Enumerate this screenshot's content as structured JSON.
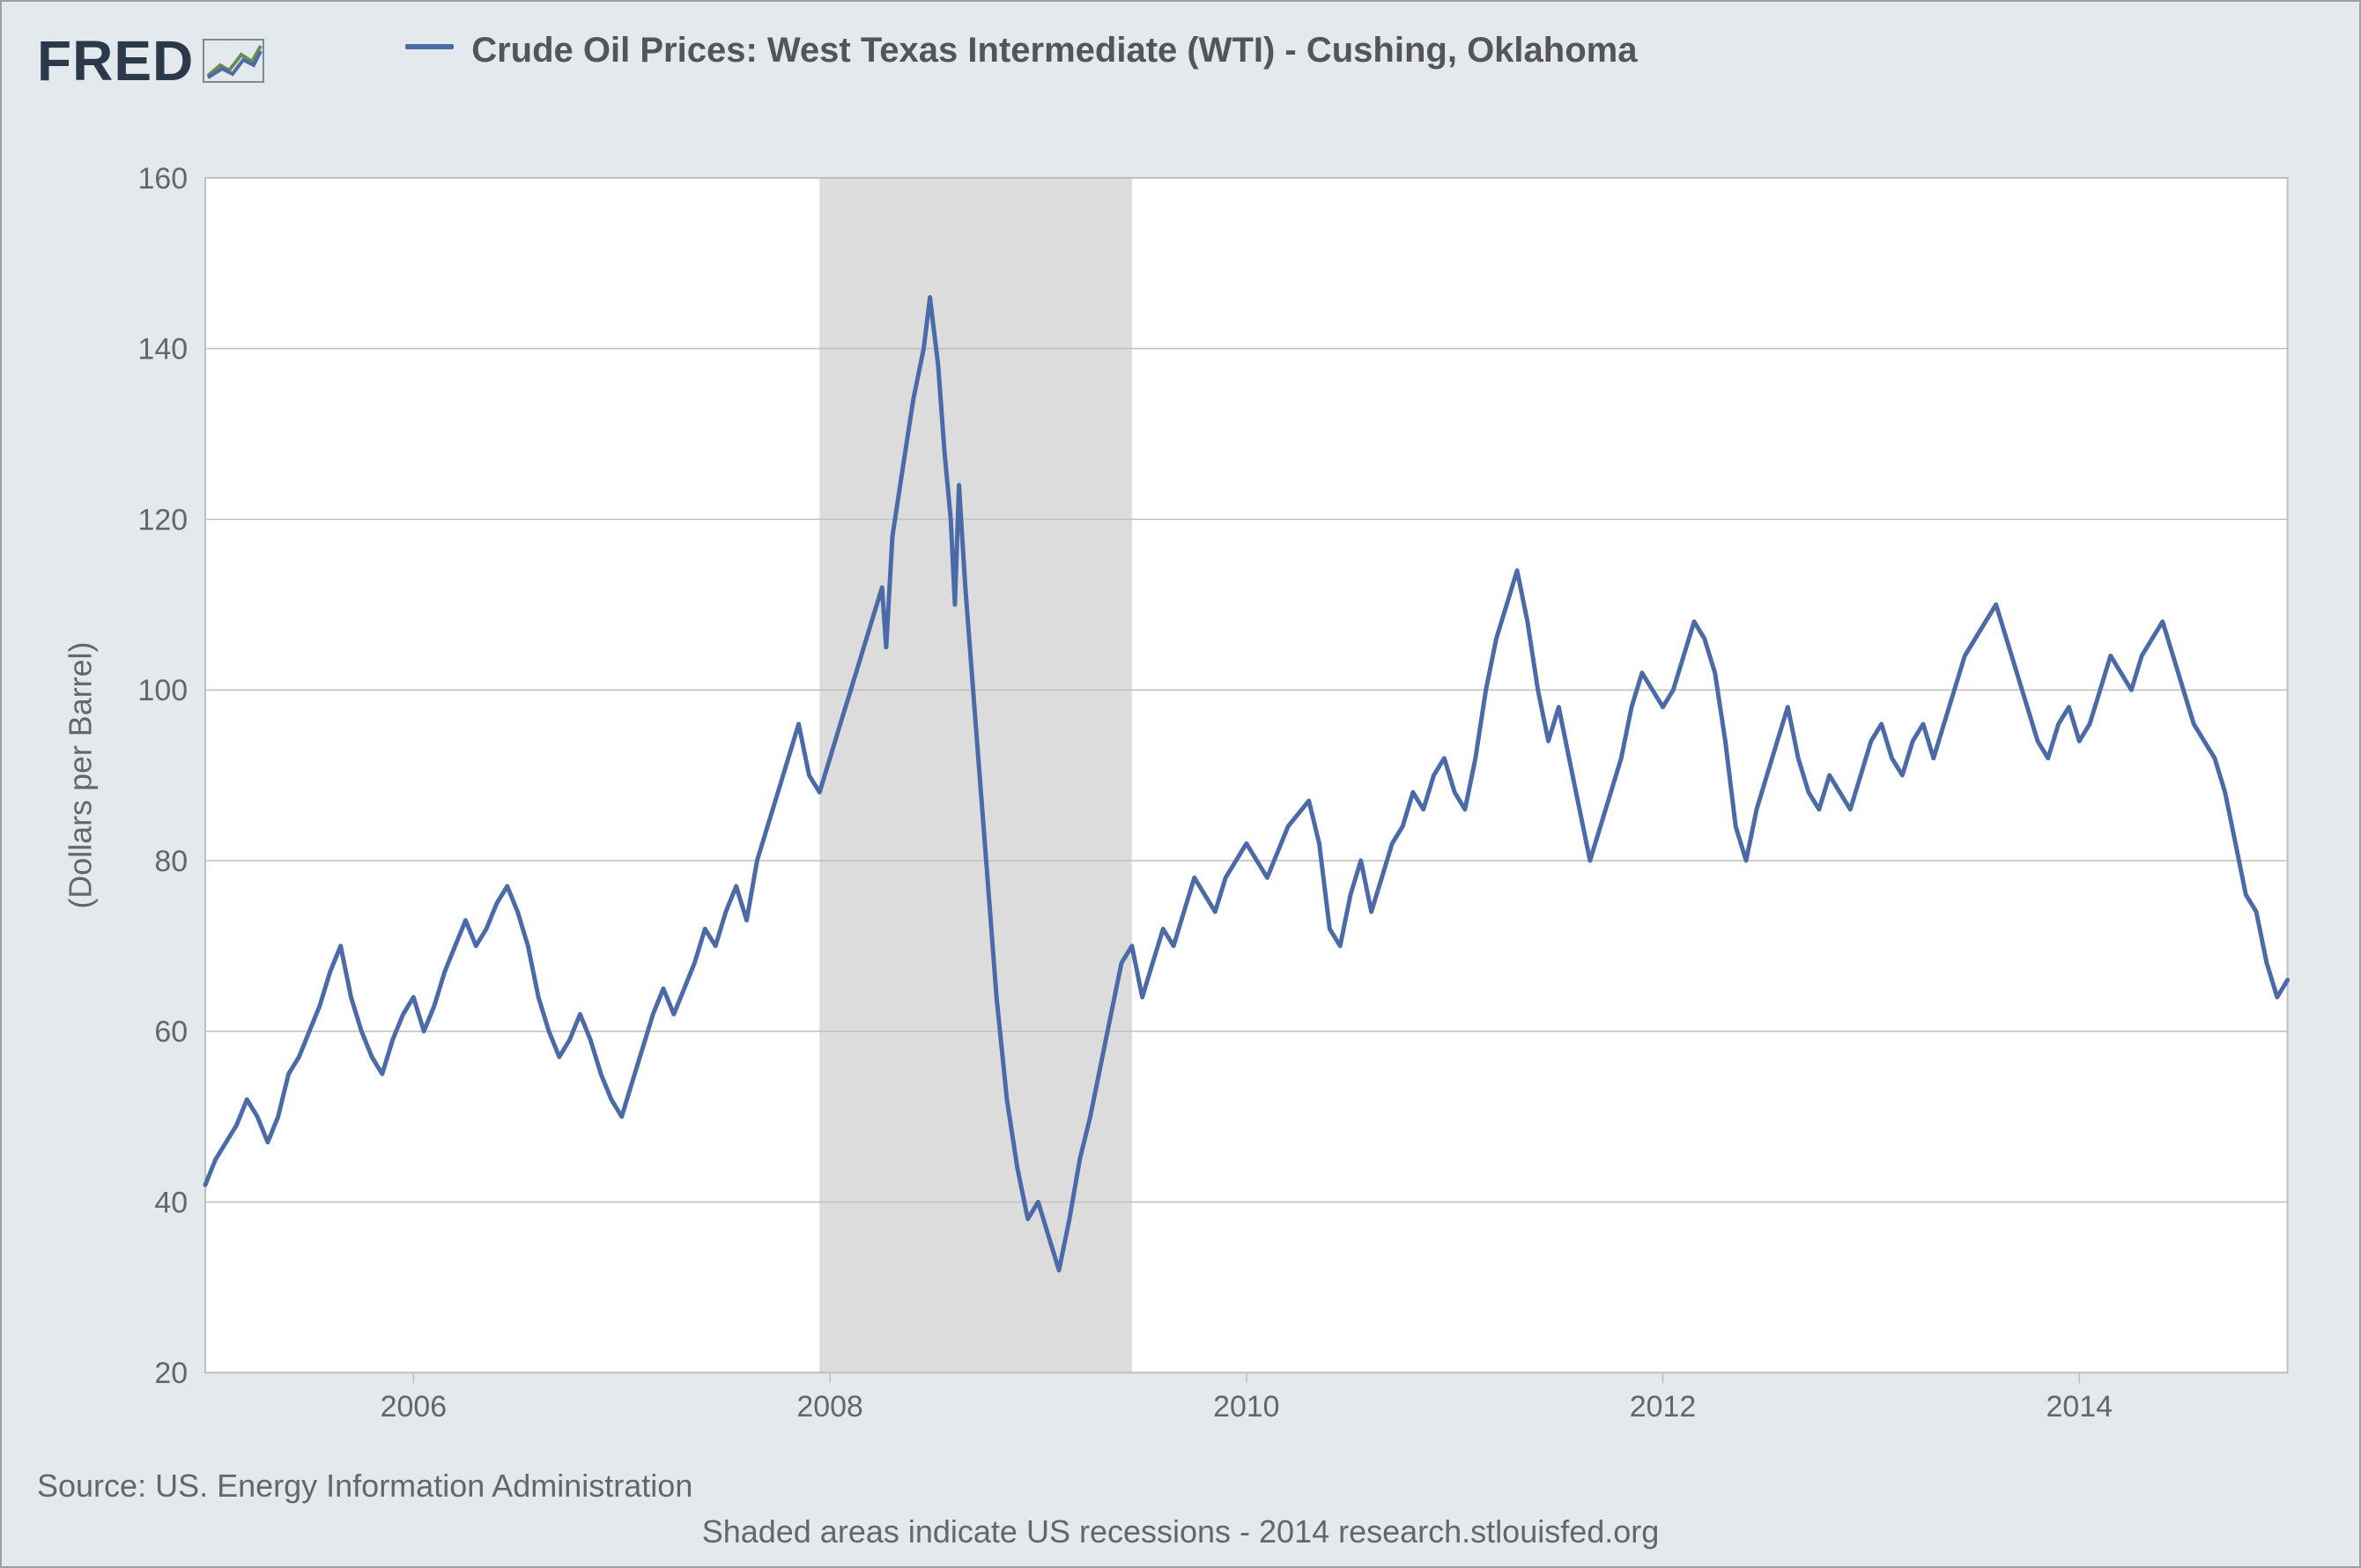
{
  "logo": {
    "text": "FRED"
  },
  "legend": {
    "series_color": "#4a6ba8",
    "label": "Crude Oil Prices: West Texas Intermediate (WTI) - Cushing, Oklahoma"
  },
  "footer": {
    "source": "Source: US. Energy Information Administration",
    "note": "Shaded areas indicate US recessions - 2014 research.stlouisfed.org"
  },
  "chart": {
    "type": "line",
    "background_color": "#ffffff",
    "page_background": "#e3e9ed",
    "grid_color": "#bfbfbf",
    "border_color": "#9aa0a6",
    "series_color": "#4a6ba8",
    "line_width": 5,
    "ylabel": "(Dollars per Barrel)",
    "ylabel_fontsize": 36,
    "axis_label_fontsize": 34,
    "axis_label_color": "#666666",
    "xlim": [
      2005.0,
      2015.0
    ],
    "ylim": [
      20,
      160
    ],
    "ytick_step": 20,
    "yticks": [
      20,
      40,
      60,
      80,
      100,
      120,
      140,
      160
    ],
    "xticks": [
      2006,
      2008,
      2010,
      2012,
      2014
    ],
    "recession_band": {
      "start": 2007.95,
      "end": 2009.45,
      "fill": "#dcdcdc"
    },
    "data": [
      [
        2005.0,
        42
      ],
      [
        2005.05,
        45
      ],
      [
        2005.1,
        47
      ],
      [
        2005.15,
        49
      ],
      [
        2005.2,
        52
      ],
      [
        2005.25,
        50
      ],
      [
        2005.3,
        47
      ],
      [
        2005.35,
        50
      ],
      [
        2005.4,
        55
      ],
      [
        2005.45,
        57
      ],
      [
        2005.5,
        60
      ],
      [
        2005.55,
        63
      ],
      [
        2005.6,
        67
      ],
      [
        2005.65,
        70
      ],
      [
        2005.7,
        64
      ],
      [
        2005.75,
        60
      ],
      [
        2005.8,
        57
      ],
      [
        2005.85,
        55
      ],
      [
        2005.9,
        59
      ],
      [
        2005.95,
        62
      ],
      [
        2006.0,
        64
      ],
      [
        2006.05,
        60
      ],
      [
        2006.1,
        63
      ],
      [
        2006.15,
        67
      ],
      [
        2006.2,
        70
      ],
      [
        2006.25,
        73
      ],
      [
        2006.3,
        70
      ],
      [
        2006.35,
        72
      ],
      [
        2006.4,
        75
      ],
      [
        2006.45,
        77
      ],
      [
        2006.5,
        74
      ],
      [
        2006.55,
        70
      ],
      [
        2006.6,
        64
      ],
      [
        2006.65,
        60
      ],
      [
        2006.7,
        57
      ],
      [
        2006.75,
        59
      ],
      [
        2006.8,
        62
      ],
      [
        2006.85,
        59
      ],
      [
        2006.9,
        55
      ],
      [
        2006.95,
        52
      ],
      [
        2007.0,
        50
      ],
      [
        2007.05,
        54
      ],
      [
        2007.1,
        58
      ],
      [
        2007.15,
        62
      ],
      [
        2007.2,
        65
      ],
      [
        2007.25,
        62
      ],
      [
        2007.3,
        65
      ],
      [
        2007.35,
        68
      ],
      [
        2007.4,
        72
      ],
      [
        2007.45,
        70
      ],
      [
        2007.5,
        74
      ],
      [
        2007.55,
        77
      ],
      [
        2007.6,
        73
      ],
      [
        2007.65,
        80
      ],
      [
        2007.7,
        84
      ],
      [
        2007.75,
        88
      ],
      [
        2007.8,
        92
      ],
      [
        2007.85,
        96
      ],
      [
        2007.9,
        90
      ],
      [
        2007.95,
        88
      ],
      [
        2008.0,
        92
      ],
      [
        2008.05,
        96
      ],
      [
        2008.1,
        100
      ],
      [
        2008.15,
        104
      ],
      [
        2008.2,
        108
      ],
      [
        2008.25,
        112
      ],
      [
        2008.27,
        105
      ],
      [
        2008.3,
        118
      ],
      [
        2008.35,
        126
      ],
      [
        2008.4,
        134
      ],
      [
        2008.45,
        140
      ],
      [
        2008.48,
        146
      ],
      [
        2008.52,
        138
      ],
      [
        2008.55,
        128
      ],
      [
        2008.58,
        120
      ],
      [
        2008.6,
        110
      ],
      [
        2008.62,
        124
      ],
      [
        2008.65,
        112
      ],
      [
        2008.7,
        96
      ],
      [
        2008.75,
        80
      ],
      [
        2008.8,
        64
      ],
      [
        2008.85,
        52
      ],
      [
        2008.9,
        44
      ],
      [
        2008.95,
        38
      ],
      [
        2009.0,
        40
      ],
      [
        2009.05,
        36
      ],
      [
        2009.1,
        32
      ],
      [
        2009.15,
        38
      ],
      [
        2009.2,
        45
      ],
      [
        2009.25,
        50
      ],
      [
        2009.3,
        56
      ],
      [
        2009.35,
        62
      ],
      [
        2009.4,
        68
      ],
      [
        2009.45,
        70
      ],
      [
        2009.5,
        64
      ],
      [
        2009.55,
        68
      ],
      [
        2009.6,
        72
      ],
      [
        2009.65,
        70
      ],
      [
        2009.7,
        74
      ],
      [
        2009.75,
        78
      ],
      [
        2009.8,
        76
      ],
      [
        2009.85,
        74
      ],
      [
        2009.9,
        78
      ],
      [
        2009.95,
        80
      ],
      [
        2010.0,
        82
      ],
      [
        2010.1,
        78
      ],
      [
        2010.2,
        84
      ],
      [
        2010.3,
        87
      ],
      [
        2010.35,
        82
      ],
      [
        2010.4,
        72
      ],
      [
        2010.45,
        70
      ],
      [
        2010.5,
        76
      ],
      [
        2010.55,
        80
      ],
      [
        2010.6,
        74
      ],
      [
        2010.65,
        78
      ],
      [
        2010.7,
        82
      ],
      [
        2010.75,
        84
      ],
      [
        2010.8,
        88
      ],
      [
        2010.85,
        86
      ],
      [
        2010.9,
        90
      ],
      [
        2010.95,
        92
      ],
      [
        2011.0,
        88
      ],
      [
        2011.05,
        86
      ],
      [
        2011.1,
        92
      ],
      [
        2011.15,
        100
      ],
      [
        2011.2,
        106
      ],
      [
        2011.25,
        110
      ],
      [
        2011.3,
        114
      ],
      [
        2011.35,
        108
      ],
      [
        2011.4,
        100
      ],
      [
        2011.45,
        94
      ],
      [
        2011.5,
        98
      ],
      [
        2011.55,
        92
      ],
      [
        2011.6,
        86
      ],
      [
        2011.65,
        80
      ],
      [
        2011.7,
        84
      ],
      [
        2011.75,
        88
      ],
      [
        2011.8,
        92
      ],
      [
        2011.85,
        98
      ],
      [
        2011.9,
        102
      ],
      [
        2011.95,
        100
      ],
      [
        2012.0,
        98
      ],
      [
        2012.05,
        100
      ],
      [
        2012.1,
        104
      ],
      [
        2012.15,
        108
      ],
      [
        2012.2,
        106
      ],
      [
        2012.25,
        102
      ],
      [
        2012.3,
        94
      ],
      [
        2012.35,
        84
      ],
      [
        2012.4,
        80
      ],
      [
        2012.45,
        86
      ],
      [
        2012.5,
        90
      ],
      [
        2012.55,
        94
      ],
      [
        2012.6,
        98
      ],
      [
        2012.65,
        92
      ],
      [
        2012.7,
        88
      ],
      [
        2012.75,
        86
      ],
      [
        2012.8,
        90
      ],
      [
        2012.85,
        88
      ],
      [
        2012.9,
        86
      ],
      [
        2012.95,
        90
      ],
      [
        2013.0,
        94
      ],
      [
        2013.05,
        96
      ],
      [
        2013.1,
        92
      ],
      [
        2013.15,
        90
      ],
      [
        2013.2,
        94
      ],
      [
        2013.25,
        96
      ],
      [
        2013.3,
        92
      ],
      [
        2013.35,
        96
      ],
      [
        2013.4,
        100
      ],
      [
        2013.45,
        104
      ],
      [
        2013.5,
        106
      ],
      [
        2013.55,
        108
      ],
      [
        2013.6,
        110
      ],
      [
        2013.65,
        106
      ],
      [
        2013.7,
        102
      ],
      [
        2013.75,
        98
      ],
      [
        2013.8,
        94
      ],
      [
        2013.85,
        92
      ],
      [
        2013.9,
        96
      ],
      [
        2013.95,
        98
      ],
      [
        2014.0,
        94
      ],
      [
        2014.05,
        96
      ],
      [
        2014.1,
        100
      ],
      [
        2014.15,
        104
      ],
      [
        2014.2,
        102
      ],
      [
        2014.25,
        100
      ],
      [
        2014.3,
        104
      ],
      [
        2014.35,
        106
      ],
      [
        2014.4,
        108
      ],
      [
        2014.45,
        104
      ],
      [
        2014.5,
        100
      ],
      [
        2014.55,
        96
      ],
      [
        2014.6,
        94
      ],
      [
        2014.65,
        92
      ],
      [
        2014.7,
        88
      ],
      [
        2014.75,
        82
      ],
      [
        2014.8,
        76
      ],
      [
        2014.85,
        74
      ],
      [
        2014.9,
        68
      ],
      [
        2014.95,
        64
      ],
      [
        2015.0,
        66
      ]
    ]
  }
}
